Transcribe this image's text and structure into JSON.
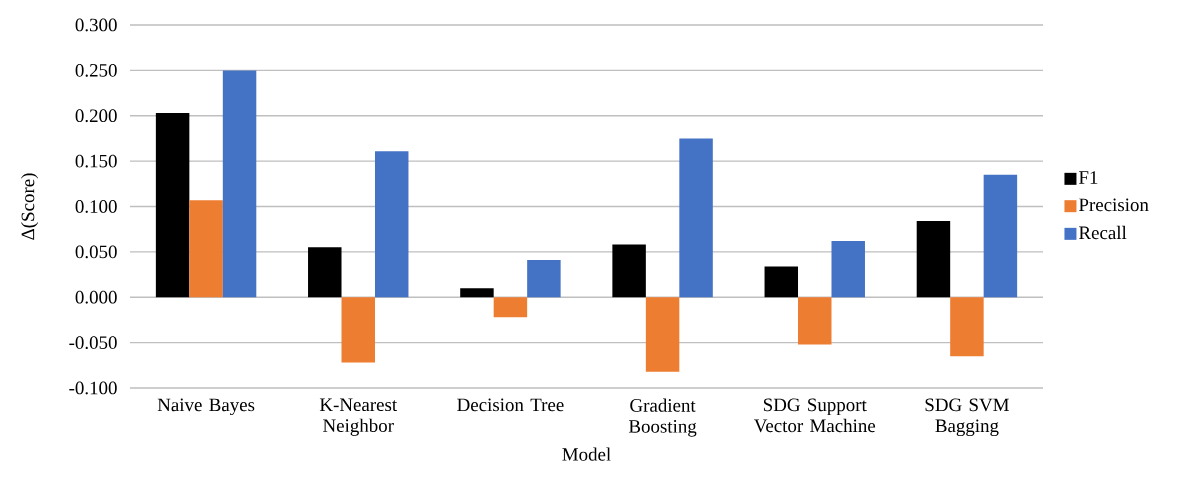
{
  "chart_data": {
    "type": "bar",
    "xlabel": "Model",
    "ylabel": "Δ(Score)",
    "categories": [
      "Naive Bayes",
      "K-Nearest Neighbor",
      "Decision Tree",
      "Gradient Boosting",
      "SDG Support Vector Machine",
      "SDG SVM Bagging"
    ],
    "series": [
      {
        "name": "F1",
        "color": "#000000",
        "values": [
          0.203,
          0.055,
          0.01,
          0.058,
          0.034,
          0.084
        ]
      },
      {
        "name": "Precision",
        "color": "#ed7d31",
        "values": [
          0.107,
          -0.072,
          -0.022,
          -0.082,
          -0.052,
          -0.065
        ]
      },
      {
        "name": "Recall",
        "color": "#4472c4",
        "values": [
          0.25,
          0.161,
          0.041,
          0.175,
          0.062,
          0.135
        ]
      }
    ],
    "ylim": [
      -0.1,
      0.3
    ],
    "yticks": [
      {
        "value": -0.1,
        "label": "-0.100"
      },
      {
        "value": -0.05,
        "label": "-0.050"
      },
      {
        "value": 0,
        "label": "0.000"
      },
      {
        "value": 0.05,
        "label": "0.050"
      },
      {
        "value": 0.1,
        "label": "0.100"
      },
      {
        "value": 0.15,
        "label": "0.150"
      },
      {
        "value": 0.2,
        "label": "0.200"
      },
      {
        "value": 0.25,
        "label": "0.250"
      },
      {
        "value": 0.3,
        "label": "0.300"
      }
    ],
    "grid": "y",
    "legend": "right"
  }
}
